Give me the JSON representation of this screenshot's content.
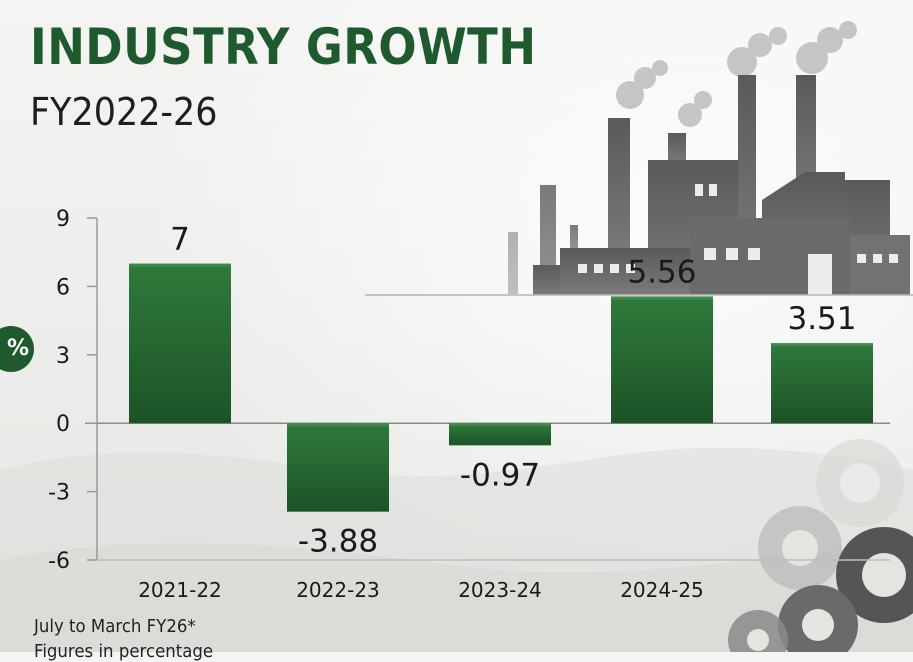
{
  "header": {
    "title": "INDUSTRY GROWTH",
    "subtitle": "FY2022-26"
  },
  "unit_badge": "%",
  "footnotes": {
    "line1": "July to March FY26*",
    "line2": "Figures in percentage"
  },
  "colors": {
    "title": "#1f5a2e",
    "bar_top": "#2f7a3c",
    "bar_bottom": "#1c5327",
    "axis": "#9a9a9a",
    "label": "#1a1a1a"
  },
  "chart_data": {
    "type": "bar",
    "categories": [
      "2021-22",
      "2022-23",
      "2023-24",
      "2024-25",
      ""
    ],
    "values": [
      7,
      -3.88,
      -0.97,
      5.56,
      3.51
    ],
    "data_labels": [
      "7",
      "-3.88",
      "-0.97",
      "5.56",
      "3.51"
    ],
    "y_ticks": [
      9,
      6,
      3,
      0,
      -3,
      -6
    ],
    "ylim": [
      -6,
      9
    ],
    "grid": false,
    "legend": "none"
  }
}
